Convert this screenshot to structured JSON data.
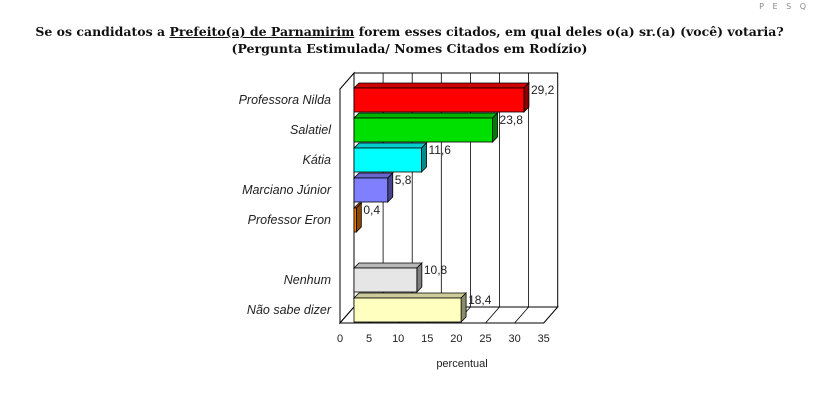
{
  "header": {
    "title_pre": "Se os candidatos a ",
    "title_underlined": "Prefeito(a) de Parnamirim",
    "title_post": " forem esses citados, em qual deles o(a) sr.(a) (você) votaria?",
    "subtitle": "(Pergunta Estimulada/ Nomes Citados em Rodízio)",
    "corner_text": "P E S Q"
  },
  "chart_data": {
    "type": "bar",
    "orientation": "horizontal",
    "title": "Se os candidatos a Prefeito(a) de Parnamirim forem esses citados, em qual deles o(a) sr.(a) (você) votaria?",
    "subtitle": "(Pergunta Estimulada/ Nomes Citados em Rodízio)",
    "xlabel": "percentual",
    "ylabel": "",
    "xlim": [
      0,
      35
    ],
    "xticks": [
      0,
      5,
      10,
      15,
      20,
      25,
      30,
      35
    ],
    "grid": true,
    "three_d": true,
    "categories": [
      "Professora Nilda",
      "Salatiel",
      "Kátia",
      "Marciano Júnior",
      "Professor Eron",
      "",
      "Nenhum",
      "Não sabe dizer"
    ],
    "values": [
      29.2,
      23.8,
      11.6,
      5.8,
      0.4,
      null,
      10.8,
      18.4
    ],
    "value_labels": [
      "29,2",
      "23,8",
      "11,6",
      "5,8",
      "0,4",
      "",
      "10,8",
      "18,4"
    ],
    "colors": [
      "#ff0000",
      "#00e000",
      "#00ffff",
      "#8080ff",
      "#ff8000",
      "",
      "#e6e6e6",
      "#ffffc0"
    ]
  }
}
